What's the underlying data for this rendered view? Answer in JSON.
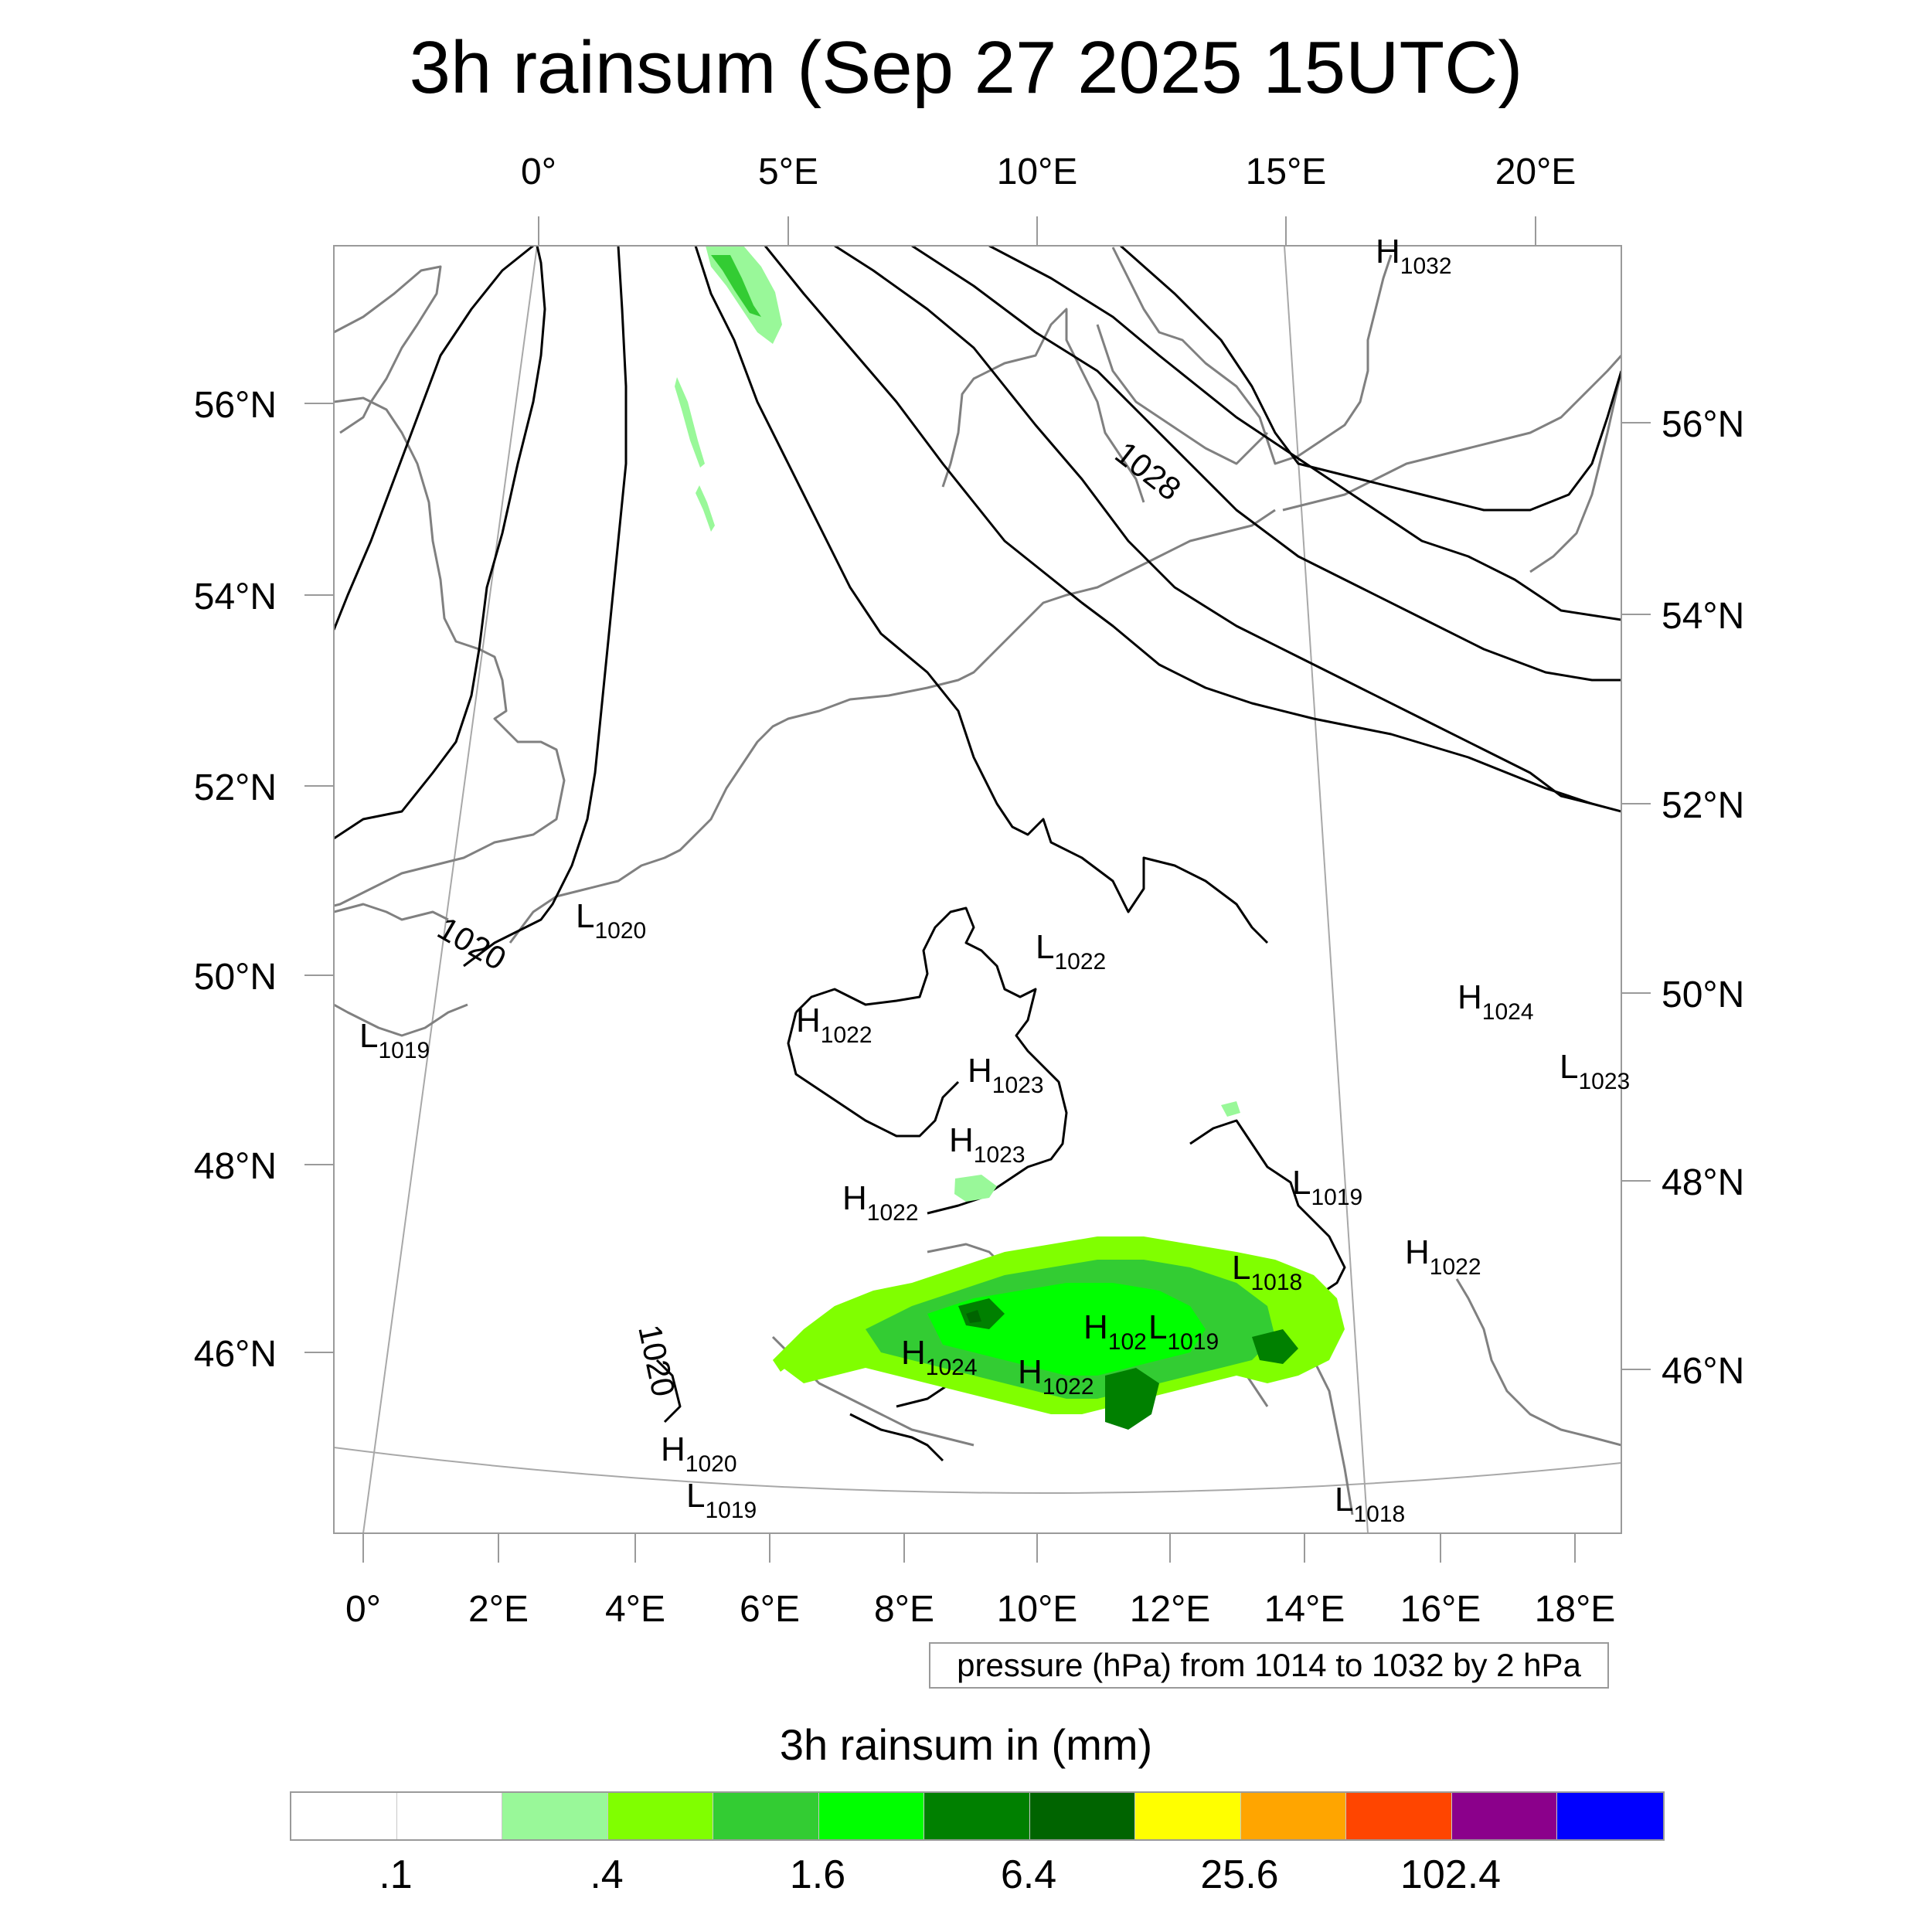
{
  "title": "3h rainsum (Sep 27 2025 15UTC)",
  "map": {
    "lon_labels_top": [
      "0°",
      "5°E",
      "10°E",
      "15°E",
      "20°E"
    ],
    "lon_labels_bottom": [
      "0°",
      "2°E",
      "4°E",
      "6°E",
      "8°E",
      "10°E",
      "12°E",
      "14°E",
      "16°E",
      "18°E"
    ],
    "lat_labels_left": [
      "56°N",
      "54°N",
      "52°N",
      "50°N",
      "48°N",
      "46°N"
    ],
    "lat_labels_right": [
      "56°N",
      "54°N",
      "52°N",
      "50°N",
      "48°N",
      "46°N"
    ],
    "isobar_labels": [
      "1028",
      "1020",
      "1020"
    ],
    "pressure_centers": [
      {
        "type": "H",
        "value": "1032"
      },
      {
        "type": "L",
        "value": "1020"
      },
      {
        "type": "L",
        "value": "1022"
      },
      {
        "type": "L",
        "value": "1019"
      },
      {
        "type": "H",
        "value": "1022"
      },
      {
        "type": "H",
        "value": "1023"
      },
      {
        "type": "H",
        "value": "1023"
      },
      {
        "type": "H",
        "value": "1022"
      },
      {
        "type": "H",
        "value": "1024"
      },
      {
        "type": "L",
        "value": "1023"
      },
      {
        "type": "L",
        "value": "1019"
      },
      {
        "type": "H",
        "value": "1022"
      },
      {
        "type": "L",
        "value": "1018"
      },
      {
        "type": "H",
        "value": "102"
      },
      {
        "type": "L",
        "value": "1019"
      },
      {
        "type": "H",
        "value": "1024"
      },
      {
        "type": "H",
        "value": "1022"
      },
      {
        "type": "H",
        "value": "1020"
      },
      {
        "type": "L",
        "value": "1019"
      },
      {
        "type": "L",
        "value": "1018"
      }
    ]
  },
  "pressure_note": "pressure (hPa) from 1014 to 1032 by 2 hPa",
  "legend": {
    "title": "3h rainsum in (mm)",
    "colors": [
      "#ffffff",
      "#ffffff",
      "#99f899",
      "#80ff00",
      "#33cc33",
      "#00ff00",
      "#008000",
      "#006400",
      "#ffff00",
      "#ffa500",
      "#ff4500",
      "#8b008b",
      "#0000ff"
    ],
    "labels": [
      ".1",
      ".4",
      "1.6",
      "6.4",
      "25.6",
      "102.4"
    ]
  },
  "colors": {
    "coastline": "#808080",
    "isobar": "#000000",
    "graticule": "#a0a0a0",
    "frame": "#9a9a9a"
  }
}
